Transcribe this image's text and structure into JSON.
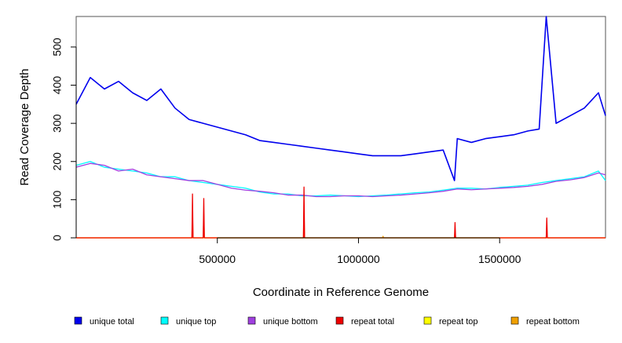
{
  "chart_data": {
    "type": "line",
    "title": "",
    "xlabel": "Coordinate in Reference Genome",
    "ylabel": "Read Coverage Depth",
    "xlim": [
      0,
      1875000
    ],
    "ylim": [
      0,
      580
    ],
    "x_ticks": [
      {
        "value": 500000,
        "label": "500000"
      },
      {
        "value": 1000000,
        "label": "1000000"
      },
      {
        "value": 1500000,
        "label": "1500000"
      }
    ],
    "y_ticks": [
      {
        "value": 0,
        "label": "0"
      },
      {
        "value": 100,
        "label": "100"
      },
      {
        "value": 200,
        "label": "200"
      },
      {
        "value": 300,
        "label": "300"
      },
      {
        "value": 400,
        "label": "400"
      },
      {
        "value": 500,
        "label": "500"
      }
    ],
    "legend_position": "bottom",
    "grid": false,
    "series": [
      {
        "name": "unique total",
        "color": "#0000ee",
        "x": [
          0,
          50000,
          100000,
          150000,
          200000,
          250000,
          300000,
          350000,
          400000,
          450000,
          500000,
          550000,
          600000,
          650000,
          700000,
          750000,
          800000,
          850000,
          900000,
          950000,
          1000000,
          1050000,
          1100000,
          1150000,
          1200000,
          1250000,
          1300000,
          1340000,
          1350000,
          1400000,
          1450000,
          1500000,
          1550000,
          1600000,
          1640000,
          1665000,
          1700000,
          1750000,
          1800000,
          1850000,
          1875000
        ],
        "values": [
          350,
          420,
          390,
          410,
          380,
          360,
          390,
          340,
          310,
          300,
          290,
          280,
          270,
          255,
          250,
          245,
          240,
          235,
          230,
          225,
          220,
          215,
          215,
          215,
          220,
          225,
          230,
          150,
          260,
          250,
          260,
          265,
          270,
          280,
          285,
          580,
          300,
          320,
          340,
          380,
          320
        ]
      },
      {
        "name": "unique top",
        "color": "#00ffff",
        "x": [
          0,
          50000,
          100000,
          150000,
          200000,
          250000,
          300000,
          350000,
          400000,
          450000,
          500000,
          550000,
          600000,
          650000,
          700000,
          750000,
          800000,
          850000,
          900000,
          950000,
          1000000,
          1050000,
          1100000,
          1150000,
          1200000,
          1250000,
          1300000,
          1350000,
          1400000,
          1450000,
          1500000,
          1550000,
          1600000,
          1650000,
          1700000,
          1750000,
          1800000,
          1850000,
          1875000
        ],
        "values": [
          190,
          200,
          185,
          180,
          175,
          170,
          160,
          160,
          150,
          145,
          140,
          135,
          130,
          120,
          115,
          115,
          110,
          110,
          112,
          110,
          108,
          110,
          112,
          115,
          118,
          120,
          125,
          130,
          130,
          128,
          132,
          135,
          138,
          145,
          150,
          155,
          160,
          175,
          150
        ]
      },
      {
        "name": "unique bottom",
        "color": "#a040e0",
        "x": [
          0,
          50000,
          100000,
          150000,
          200000,
          250000,
          300000,
          350000,
          400000,
          450000,
          500000,
          550000,
          600000,
          650000,
          700000,
          750000,
          800000,
          850000,
          900000,
          950000,
          1000000,
          1050000,
          1100000,
          1150000,
          1200000,
          1250000,
          1300000,
          1350000,
          1400000,
          1450000,
          1500000,
          1550000,
          1600000,
          1650000,
          1700000,
          1750000,
          1800000,
          1850000,
          1875000
        ],
        "values": [
          185,
          195,
          190,
          175,
          180,
          165,
          160,
          155,
          150,
          150,
          140,
          130,
          125,
          122,
          118,
          112,
          112,
          108,
          108,
          110,
          110,
          108,
          110,
          112,
          115,
          118,
          122,
          128,
          126,
          128,
          130,
          132,
          135,
          140,
          148,
          152,
          158,
          170,
          165
        ]
      },
      {
        "name": "repeat total",
        "color": "#ee0000",
        "x": [
          0,
          410000,
          412000,
          414000,
          450000,
          452000,
          454000,
          805000,
          807000,
          809000,
          1340000,
          1342000,
          1344000,
          1665000,
          1667000,
          1669000,
          1875000
        ],
        "values": [
          0,
          0,
          115,
          0,
          0,
          103,
          0,
          0,
          133,
          0,
          0,
          40,
          0,
          0,
          52,
          0,
          0
        ]
      },
      {
        "name": "repeat top",
        "color": "#ffff00",
        "x": [
          0,
          1875000
        ],
        "values": [
          0,
          0
        ]
      },
      {
        "name": "repeat bottom",
        "color": "#f0a000",
        "x": [
          0,
          410000,
          412000,
          414000,
          450000,
          452000,
          454000,
          805000,
          807000,
          809000,
          1085000,
          1087000,
          1089000,
          1340000,
          1342000,
          1344000,
          1665000,
          1667000,
          1669000,
          1875000
        ],
        "values": [
          0,
          0,
          62,
          0,
          0,
          62,
          0,
          0,
          70,
          0,
          0,
          4,
          0,
          0,
          20,
          0,
          0,
          28,
          0,
          0
        ]
      }
    ]
  }
}
